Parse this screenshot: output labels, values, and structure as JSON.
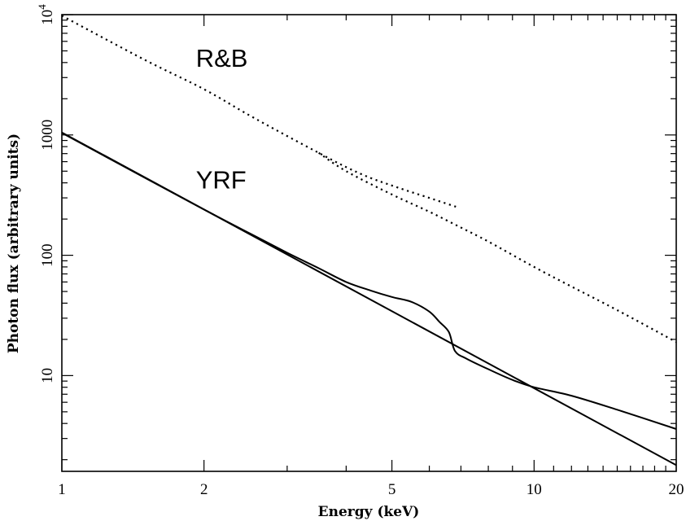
{
  "chart_data": {
    "type": "line",
    "title": "",
    "xlabel": "Energy (keV)",
    "ylabel": "Photon flux (arbitrary units)",
    "x_scale": "log",
    "y_scale": "log",
    "xlim": [
      1,
      20
    ],
    "ylim": [
      1.6,
      10000
    ],
    "x_ticks": [
      {
        "value": 1,
        "label": "1"
      },
      {
        "value": 2,
        "label": "2"
      },
      {
        "value": 5,
        "label": "5"
      },
      {
        "value": 10,
        "label": "10"
      },
      {
        "value": 20,
        "label": "20"
      }
    ],
    "y_ticks": [
      {
        "value": 10,
        "label": "10"
      },
      {
        "value": 100,
        "label": "100"
      },
      {
        "value": 1000,
        "label": "1000"
      },
      {
        "value": 10000,
        "label": "10",
        "exponent": "4"
      }
    ],
    "annotations": [
      {
        "text": "R&B",
        "x": 2.0,
        "y": 4300
      },
      {
        "text": "YRF",
        "x": 2.0,
        "y": 420
      }
    ],
    "series": [
      {
        "style": "solid",
        "x": [
          1,
          20
        ],
        "y": [
          1050,
          1.8
        ]
      },
      {
        "style": "solid",
        "x": [
          1,
          1.5,
          2,
          2.5,
          3,
          3.5,
          4,
          4.5,
          5,
          5.5,
          6,
          6.3,
          6.6,
          6.8,
          7.2,
          8,
          9,
          10,
          12,
          15,
          20
        ],
        "y": [
          1040,
          440,
          240,
          152,
          105,
          78,
          60,
          51,
          45,
          41,
          34,
          28,
          23,
          16,
          13.8,
          11.3,
          9.2,
          8.0,
          6.8,
          5.2,
          3.6
        ]
      },
      {
        "style": "dotted",
        "x": [
          1,
          1.5,
          2,
          2.5,
          3,
          3.5,
          4,
          4.5,
          5,
          5.5,
          6,
          6.5,
          6.9
        ],
        "y": [
          9800,
          4200,
          2400,
          1450,
          980,
          710,
          540,
          440,
          380,
          335,
          300,
          270,
          250
        ]
      },
      {
        "style": "dotted",
        "x": [
          3.5,
          4,
          5,
          6,
          7,
          8,
          10,
          12,
          15,
          20
        ],
        "y": [
          710,
          500,
          320,
          230,
          170,
          130,
          80,
          55,
          35,
          19
        ]
      }
    ]
  }
}
